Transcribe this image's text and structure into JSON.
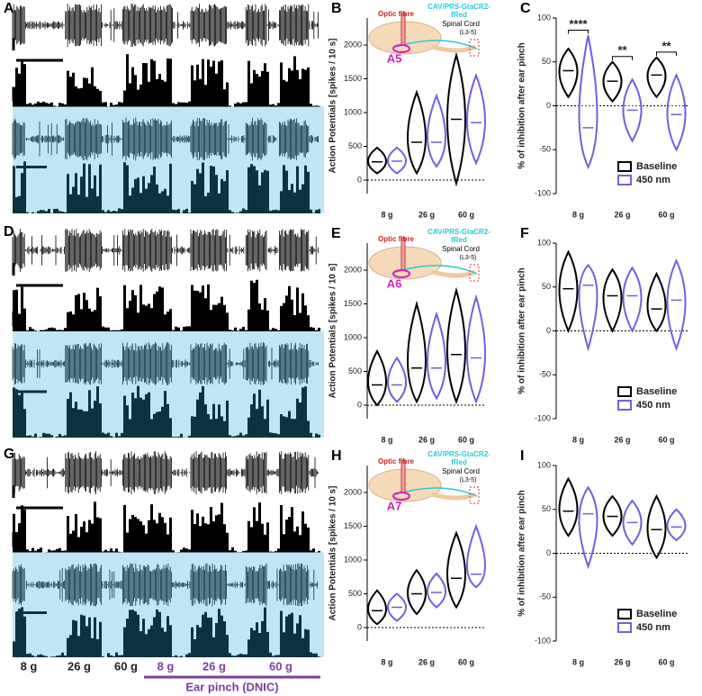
{
  "panels": {
    "A": "A",
    "D": "D",
    "G": "G"
  },
  "bottom_labels": {
    "conditions": [
      "8 g",
      "26 g",
      "60 g"
    ],
    "dnic_conditions": [
      "8 g",
      "26 g",
      "60 g"
    ],
    "dnic": "Ear pinch (DNIC)"
  },
  "chart_data": [
    {
      "type": "violin",
      "panel": "B",
      "ylabel": "Action Potentials [spikes / 10 s]",
      "categories": [
        "8 g",
        "26 g",
        "60 g"
      ],
      "ylim": [
        -200,
        2400
      ],
      "yticks": [
        0,
        500,
        1000,
        1500,
        2000
      ],
      "hline": 0,
      "legend": false,
      "inset": {
        "fibre": "Optic fibre",
        "virus": [
          "CAV/PRS-GtaCR2-",
          "fRed"
        ],
        "cord": "Spinal Cord",
        "level": "(L3-5)",
        "nucleus": "A5"
      },
      "series": [
        {
          "name": "Baseline",
          "color": "#000000",
          "values": [
            270,
            560,
            900
          ],
          "min": [
            100,
            100,
            -50
          ],
          "max": [
            480,
            1300,
            1850
          ]
        },
        {
          "name": "450 nm",
          "color": "#6b63e0",
          "values": [
            280,
            560,
            850
          ],
          "min": [
            100,
            200,
            250
          ],
          "max": [
            480,
            1250,
            1550
          ]
        }
      ]
    },
    {
      "type": "violin",
      "panel": "C",
      "ylabel": "% of inhibition after ear pinch",
      "categories": [
        "8 g",
        "26 g",
        "60 g"
      ],
      "ylim": [
        -100,
        100
      ],
      "yticks": [
        -100,
        -50,
        0,
        50,
        100
      ],
      "hline": 0,
      "legend": true,
      "significance": [
        "****",
        "**",
        "**"
      ],
      "series": [
        {
          "name": "Baseline",
          "color": "#000000",
          "values": [
            40,
            28,
            35
          ],
          "min": [
            10,
            5,
            10
          ],
          "max": [
            65,
            50,
            55
          ]
        },
        {
          "name": "450 nm",
          "color": "#6b63e0",
          "values": [
            -25,
            -5,
            -10
          ],
          "min": [
            -70,
            -40,
            -50
          ],
          "max": [
            80,
            30,
            35
          ]
        }
      ]
    },
    {
      "type": "violin",
      "panel": "E",
      "ylabel": "Action Potentials [spikes / 10 s]",
      "categories": [
        "8 g",
        "26 g",
        "60 g"
      ],
      "ylim": [
        -200,
        2400
      ],
      "yticks": [
        0,
        500,
        1000,
        1500,
        2000
      ],
      "hline": 0,
      "legend": false,
      "inset": {
        "fibre": "Optic fibre",
        "virus": [
          "CAV/PRS-GtaCR2-",
          "fRed"
        ],
        "cord": "Spinal Cord",
        "level": "(L3-5)",
        "nucleus": "A6"
      },
      "series": [
        {
          "name": "Baseline",
          "color": "#000000",
          "values": [
            300,
            550,
            750
          ],
          "min": [
            0,
            50,
            50
          ],
          "max": [
            800,
            1500,
            1700
          ]
        },
        {
          "name": "450 nm",
          "color": "#6b63e0",
          "values": [
            300,
            550,
            700
          ],
          "min": [
            50,
            100,
            50
          ],
          "max": [
            700,
            1350,
            1600
          ]
        }
      ]
    },
    {
      "type": "violin",
      "panel": "F",
      "ylabel": "% of inhibition after ear pinch",
      "categories": [
        "8 g",
        "26 g",
        "60 g"
      ],
      "ylim": [
        -100,
        100
      ],
      "yticks": [
        -100,
        -50,
        0,
        50,
        100
      ],
      "hline": 0,
      "legend": true,
      "series": [
        {
          "name": "Baseline",
          "color": "#000000",
          "values": [
            48,
            40,
            25
          ],
          "min": [
            0,
            0,
            0
          ],
          "max": [
            90,
            70,
            65
          ]
        },
        {
          "name": "450 nm",
          "color": "#6b63e0",
          "values": [
            52,
            40,
            35
          ],
          "min": [
            -20,
            0,
            -20
          ],
          "max": [
            75,
            72,
            80
          ]
        }
      ]
    },
    {
      "type": "violin",
      "panel": "H",
      "ylabel": "Action Potentials [spikes / 10 s]",
      "categories": [
        "8 g",
        "26 g",
        "60 g"
      ],
      "ylim": [
        -200,
        2400
      ],
      "yticks": [
        0,
        500,
        1000,
        1500,
        2000
      ],
      "hline": 0,
      "legend": false,
      "inset": {
        "fibre": "Optic fibre",
        "virus": [
          "CAV/PRS-GtaCR2-",
          "fRed"
        ],
        "cord": "Spinal Cord",
        "level": "(L3-5)",
        "nucleus": "A7"
      },
      "series": [
        {
          "name": "Baseline",
          "color": "#000000",
          "values": [
            250,
            500,
            730
          ],
          "min": [
            50,
            200,
            300
          ],
          "max": [
            550,
            850,
            1400
          ]
        },
        {
          "name": "450 nm",
          "color": "#6b63e0",
          "values": [
            300,
            520,
            790
          ],
          "min": [
            100,
            300,
            600
          ],
          "max": [
            500,
            800,
            1500
          ]
        }
      ]
    },
    {
      "type": "violin",
      "panel": "I",
      "ylabel": "% of inhibition after ear pinch",
      "categories": [
        "8 g",
        "26 g",
        "60 g"
      ],
      "ylim": [
        -100,
        100
      ],
      "yticks": [
        -100,
        -50,
        0,
        50,
        100
      ],
      "hline": 0,
      "legend": true,
      "series": [
        {
          "name": "Baseline",
          "color": "#000000",
          "values": [
            48,
            42,
            27
          ],
          "min": [
            20,
            20,
            -5
          ],
          "max": [
            85,
            65,
            65
          ]
        },
        {
          "name": "450 nm",
          "color": "#6b63e0",
          "values": [
            45,
            35,
            30
          ],
          "min": [
            -15,
            10,
            15
          ],
          "max": [
            75,
            60,
            50
          ]
        }
      ]
    }
  ]
}
